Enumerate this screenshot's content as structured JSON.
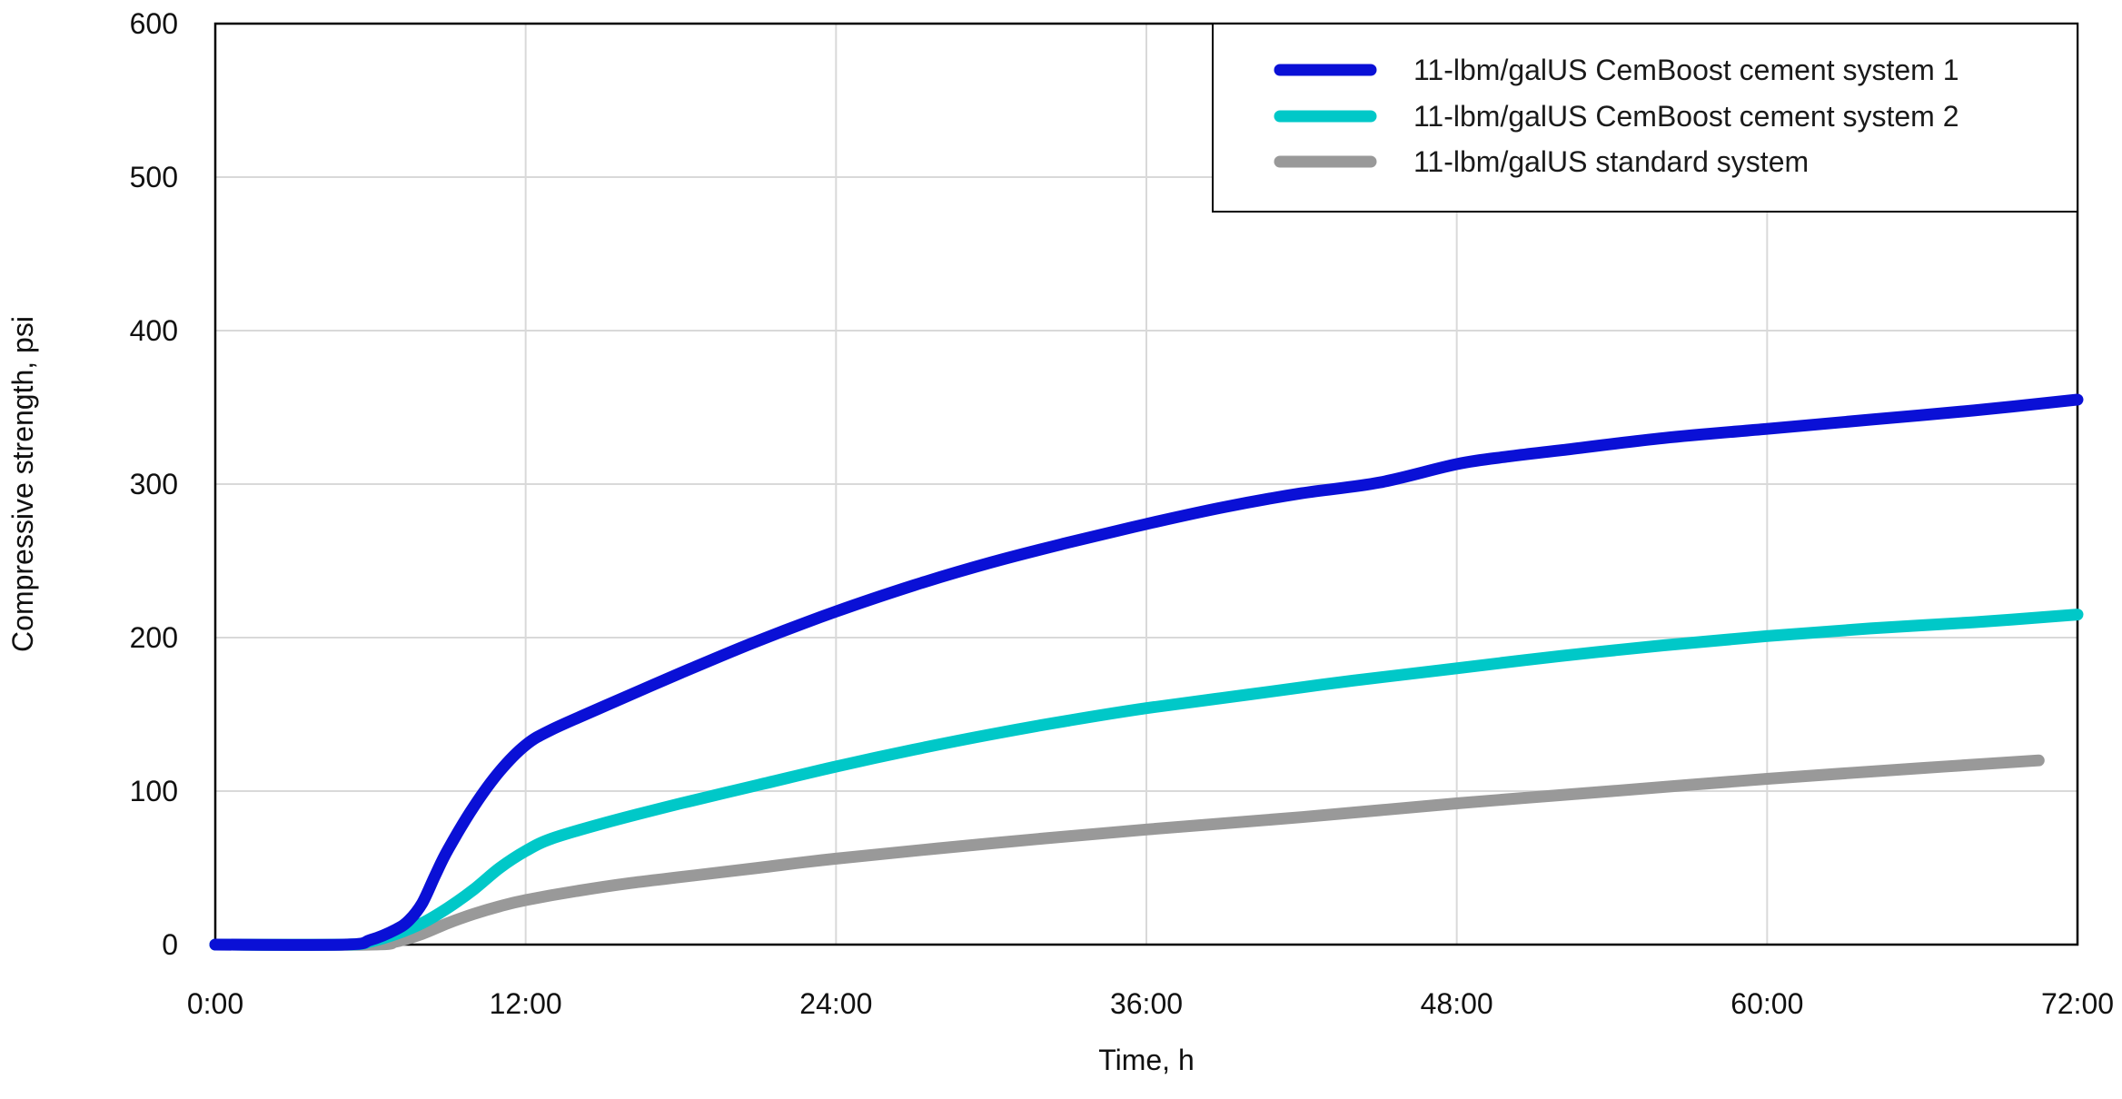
{
  "chart_data": {
    "type": "line",
    "title": "",
    "xlabel": "Time, h",
    "ylabel": "Compressive strength, psi",
    "xlim": [
      0,
      72
    ],
    "ylim": [
      0,
      600
    ],
    "x_ticks": [
      0,
      12,
      24,
      36,
      48,
      60,
      72
    ],
    "x_tick_labels": [
      "0:00",
      "12:00",
      "24:00",
      "36:00",
      "48:00",
      "60:00",
      "72:00"
    ],
    "y_ticks": [
      0,
      100,
      200,
      300,
      400,
      500,
      600
    ],
    "y_tick_labels": [
      "0",
      "100",
      "200",
      "300",
      "400",
      "500",
      "600"
    ],
    "grid": true,
    "legend_position": "top-right",
    "series": [
      {
        "name": "11-lbm/galUS CemBoost cement system 1",
        "color": "#0a10d6",
        "x": [
          0,
          5,
          6,
          7,
          7.5,
          8,
          8.5,
          9,
          10,
          11,
          12,
          13,
          15,
          18,
          21,
          24,
          27,
          30,
          33,
          36,
          39,
          42,
          45,
          48,
          50,
          52,
          56,
          60,
          64,
          68,
          72
        ],
        "y": [
          0,
          0,
          3,
          10,
          16,
          27,
          45,
          62,
          90,
          113,
          130,
          140,
          155,
          177,
          198,
          217,
          234,
          249,
          262,
          274,
          285,
          294,
          301,
          313,
          318,
          322,
          330,
          336,
          342,
          348,
          355
        ]
      },
      {
        "name": "11-lbm/galUS CemBoost cement system 2",
        "color": "#00c8c8",
        "x": [
          0,
          5,
          6,
          7,
          8,
          9,
          10,
          11,
          12,
          13,
          15,
          18,
          21,
          24,
          27,
          30,
          33,
          36,
          40,
          44,
          48,
          52,
          56,
          60,
          64,
          68,
          72
        ],
        "y": [
          0,
          0,
          2,
          7,
          14,
          24,
          36,
          50,
          61,
          69,
          79,
          92,
          104,
          116,
          127,
          137,
          146,
          154,
          163,
          172,
          180,
          188,
          195,
          201,
          206,
          210,
          215
        ]
      },
      {
        "name": "11-lbm/galUS standard system",
        "color": "#999999",
        "x": [
          0,
          6,
          7,
          8,
          9,
          10,
          11,
          12,
          14,
          16,
          18,
          21,
          24,
          30,
          36,
          42,
          48,
          54,
          60,
          66,
          70.5
        ],
        "y": [
          0,
          0,
          2,
          7,
          14,
          20,
          25,
          29,
          35,
          40,
          44,
          50,
          56,
          66,
          75,
          83,
          92,
          100,
          108,
          115,
          120
        ]
      }
    ]
  }
}
